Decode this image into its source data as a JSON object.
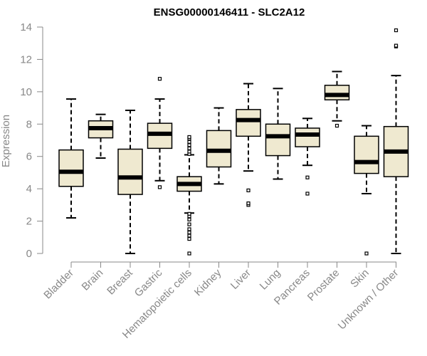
{
  "chart_data": {
    "type": "boxplot",
    "title": "ENSG00000146411 - SLC2A12",
    "xlabel": "",
    "ylabel": "Expression",
    "ylim": [
      0,
      14
    ],
    "yticks": [
      0,
      2,
      4,
      6,
      8,
      10,
      12,
      14
    ],
    "box_fill": "#efe9d0",
    "categories": [
      "Bladder",
      "Brain",
      "Breast",
      "Gastric",
      "Hematopoietic cells",
      "Kidney",
      "Liver",
      "Lung",
      "Pancreas",
      "Prostate",
      "Skin",
      "Unknown / Other"
    ],
    "boxes": [
      {
        "name": "Bladder",
        "whisker_low": 2.2,
        "q1": 4.15,
        "median": 5.05,
        "q3": 6.4,
        "whisker_high": 9.55,
        "outliers": []
      },
      {
        "name": "Brain",
        "whisker_low": 5.9,
        "q1": 7.15,
        "median": 7.75,
        "q3": 8.2,
        "whisker_high": 8.6,
        "outliers": []
      },
      {
        "name": "Breast",
        "whisker_low": 0.0,
        "q1": 3.65,
        "median": 4.7,
        "q3": 6.45,
        "whisker_high": 8.85,
        "outliers": []
      },
      {
        "name": "Gastric",
        "whisker_low": 4.5,
        "q1": 6.5,
        "median": 7.4,
        "q3": 8.05,
        "whisker_high": 9.55,
        "outliers": [
          4.1,
          10.8
        ]
      },
      {
        "name": "Hematopoietic cells",
        "whisker_low": 2.5,
        "q1": 3.85,
        "median": 4.3,
        "q3": 4.75,
        "whisker_high": 6.1,
        "outliers": [
          0.0,
          0.9,
          1.1,
          1.3,
          1.5,
          1.8,
          2.1,
          2.3,
          2.45,
          6.15,
          6.3,
          6.5,
          6.7,
          6.9,
          7.1,
          7.2
        ]
      },
      {
        "name": "Kidney",
        "whisker_low": 4.3,
        "q1": 5.35,
        "median": 6.35,
        "q3": 7.6,
        "whisker_high": 9.0,
        "outliers": []
      },
      {
        "name": "Liver",
        "whisker_low": 5.1,
        "q1": 7.25,
        "median": 8.25,
        "q3": 8.9,
        "whisker_high": 10.5,
        "outliers": [
          3.0,
          3.1,
          3.9
        ]
      },
      {
        "name": "Lung",
        "whisker_low": 4.6,
        "q1": 6.05,
        "median": 7.25,
        "q3": 8.0,
        "whisker_high": 10.2,
        "outliers": []
      },
      {
        "name": "Pancreas",
        "whisker_low": 5.45,
        "q1": 6.6,
        "median": 7.35,
        "q3": 7.75,
        "whisker_high": 8.35,
        "outliers": [
          3.7,
          4.7
        ]
      },
      {
        "name": "Prostate",
        "whisker_low": 8.2,
        "q1": 9.5,
        "median": 9.8,
        "q3": 10.4,
        "whisker_high": 11.25,
        "outliers": [
          7.9
        ]
      },
      {
        "name": "Skin",
        "whisker_low": 3.7,
        "q1": 4.95,
        "median": 5.65,
        "q3": 7.25,
        "whisker_high": 7.9,
        "outliers": [
          0.0
        ]
      },
      {
        "name": "Unknown / Other",
        "whisker_low": 0.0,
        "q1": 4.75,
        "median": 6.3,
        "q3": 7.85,
        "whisker_high": 11.0,
        "outliers": [
          12.8,
          12.85,
          13.8
        ]
      }
    ]
  }
}
